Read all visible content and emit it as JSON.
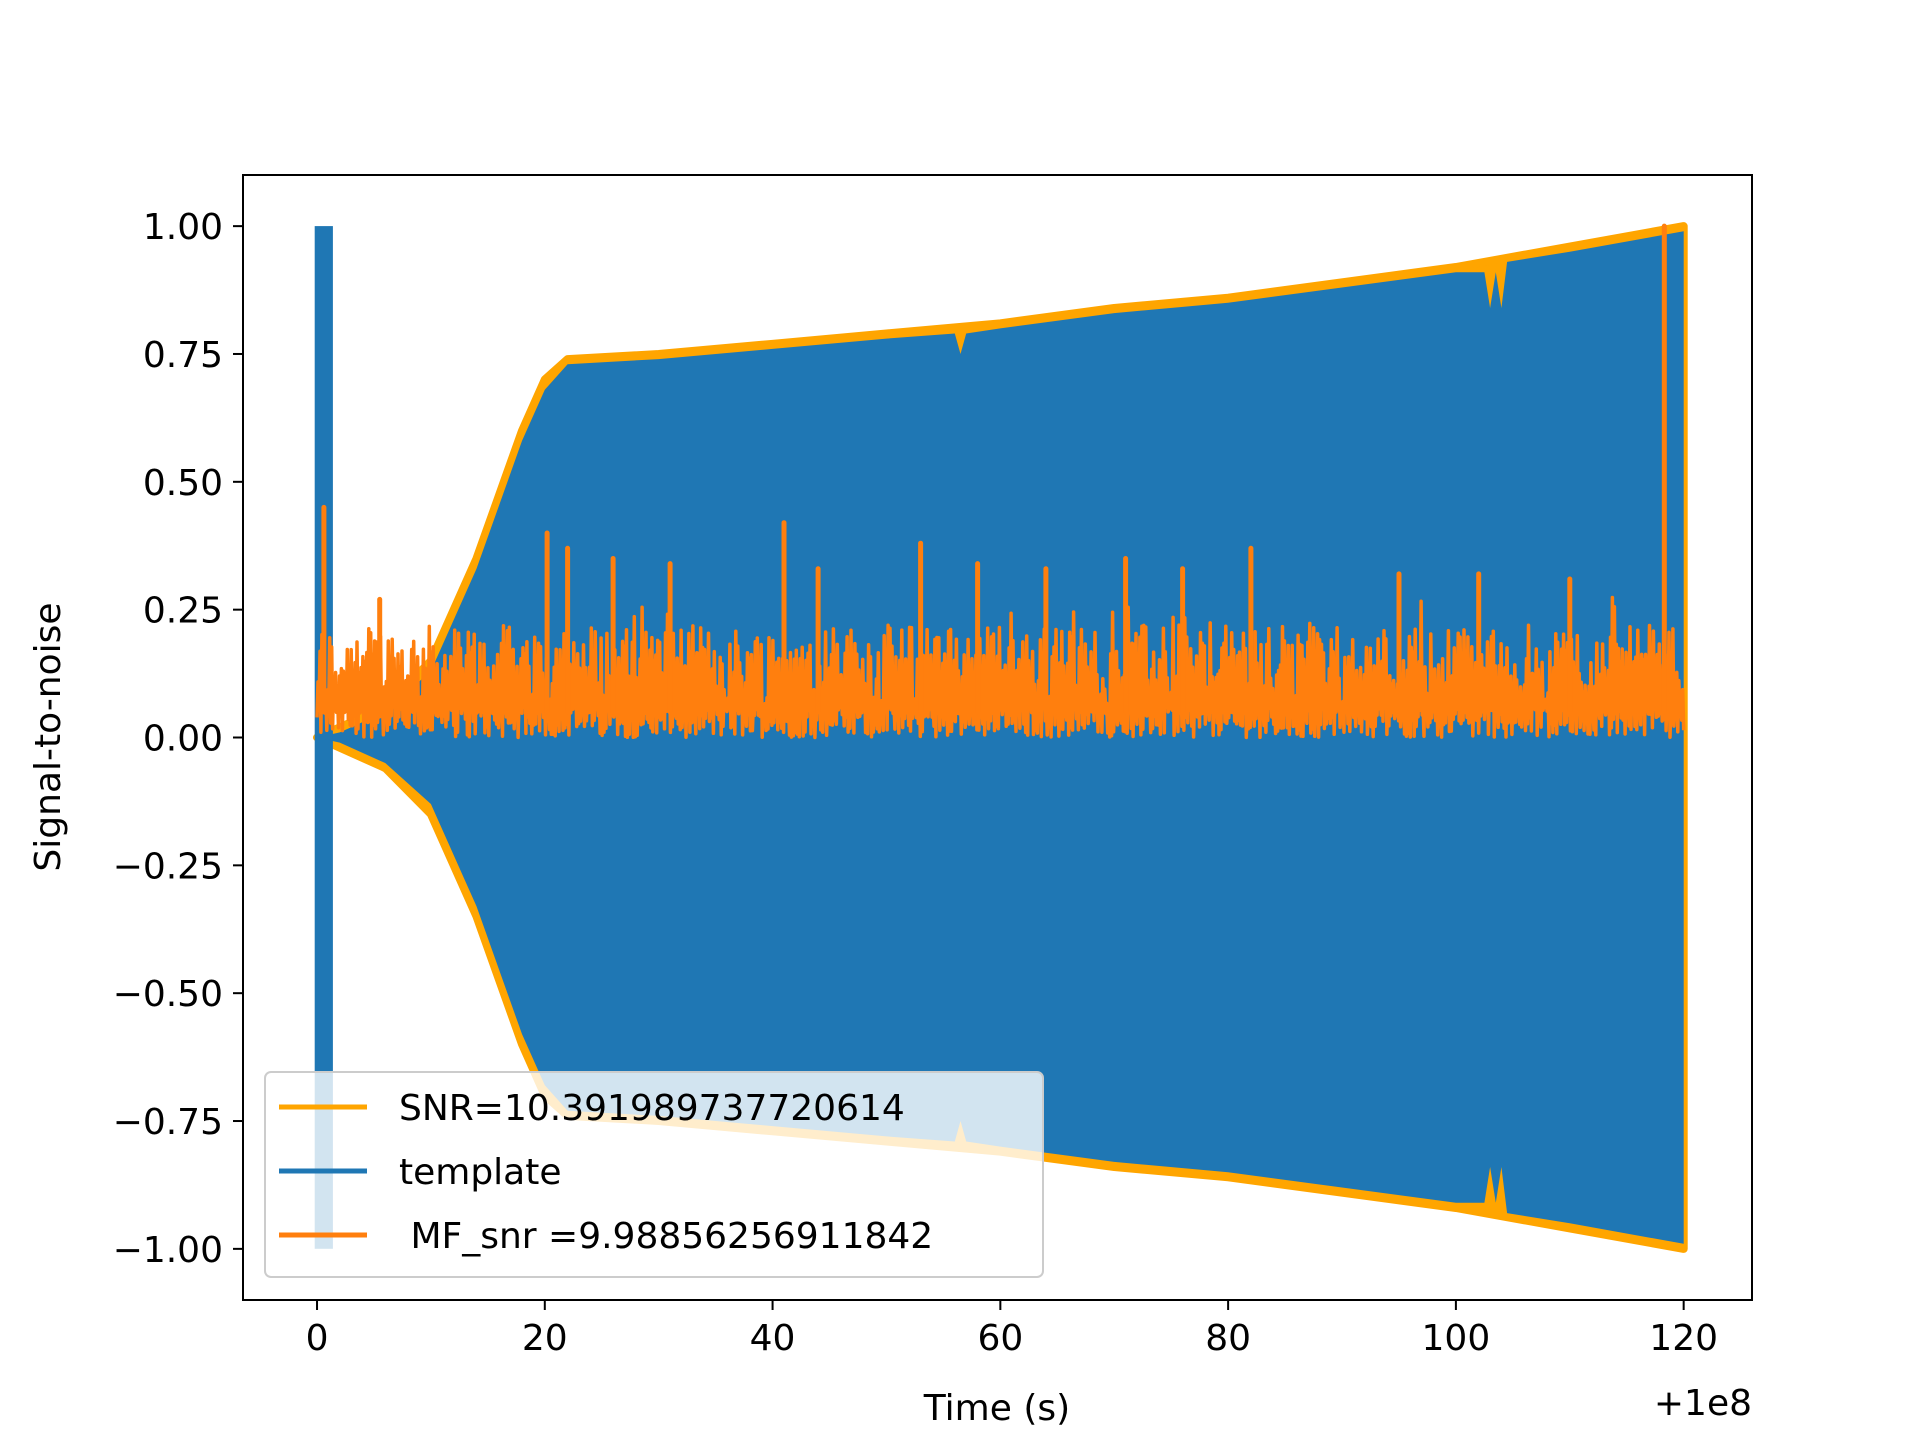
{
  "chart_data": {
    "type": "line",
    "title": "",
    "xlabel": "Time (s)",
    "ylabel": "Signal-to-noise",
    "x_offset_label": "+1e8",
    "xlim": [
      -6.5,
      126
    ],
    "ylim": [
      -1.1,
      1.1
    ],
    "xticks": [
      {
        "value": 0,
        "label": "0"
      },
      {
        "value": 20,
        "label": "20"
      },
      {
        "value": 40,
        "label": "40"
      },
      {
        "value": 60,
        "label": "60"
      },
      {
        "value": 80,
        "label": "80"
      },
      {
        "value": 100,
        "label": "100"
      },
      {
        "value": 120,
        "label": "120"
      }
    ],
    "yticks": [
      {
        "value": 1.0,
        "label": "1.00"
      },
      {
        "value": 0.75,
        "label": "0.75"
      },
      {
        "value": 0.5,
        "label": "0.50"
      },
      {
        "value": 0.25,
        "label": "0.25"
      },
      {
        "value": 0.0,
        "label": "0.00"
      },
      {
        "value": -0.25,
        "label": "−0.25"
      },
      {
        "value": -0.5,
        "label": "−0.50"
      },
      {
        "value": -0.75,
        "label": "−0.75"
      },
      {
        "value": -1.0,
        "label": "−1.00"
      }
    ],
    "grid": false,
    "legend_position": "lower-left",
    "series": [
      {
        "name": "SNR=10.391989737720614",
        "color": "#ffa500",
        "kind": "envelope",
        "upper": [
          [
            0,
            0.0
          ],
          [
            2,
            0.02
          ],
          [
            6,
            0.06
          ],
          [
            10,
            0.15
          ],
          [
            14,
            0.35
          ],
          [
            18,
            0.6
          ],
          [
            20,
            0.7
          ],
          [
            22,
            0.74
          ],
          [
            30,
            0.75
          ],
          [
            40,
            0.77
          ],
          [
            50,
            0.79
          ],
          [
            60,
            0.81
          ],
          [
            70,
            0.84
          ],
          [
            80,
            0.86
          ],
          [
            90,
            0.89
          ],
          [
            100,
            0.92
          ],
          [
            110,
            0.96
          ],
          [
            120,
            1.0
          ]
        ],
        "lower": [
          [
            0,
            0.0
          ],
          [
            2,
            -0.02
          ],
          [
            6,
            -0.06
          ],
          [
            10,
            -0.15
          ],
          [
            14,
            -0.35
          ],
          [
            18,
            -0.6
          ],
          [
            20,
            -0.7
          ],
          [
            22,
            -0.74
          ],
          [
            30,
            -0.75
          ],
          [
            40,
            -0.77
          ],
          [
            50,
            -0.79
          ],
          [
            60,
            -0.81
          ],
          [
            70,
            -0.84
          ],
          [
            80,
            -0.86
          ],
          [
            90,
            -0.89
          ],
          [
            100,
            -0.92
          ],
          [
            110,
            -0.96
          ],
          [
            120,
            -1.0
          ]
        ]
      },
      {
        "name": "template",
        "color": "#1f77b4",
        "kind": "envelope",
        "upper": [
          [
            0,
            0.0
          ],
          [
            2,
            0.01
          ],
          [
            6,
            0.05
          ],
          [
            10,
            0.13
          ],
          [
            14,
            0.33
          ],
          [
            18,
            0.58
          ],
          [
            20,
            0.68
          ],
          [
            22,
            0.73
          ],
          [
            30,
            0.74
          ],
          [
            40,
            0.76
          ],
          [
            50,
            0.78
          ],
          [
            56,
            0.79
          ],
          [
            56.5,
            0.75
          ],
          [
            57,
            0.79
          ],
          [
            60,
            0.8
          ],
          [
            70,
            0.83
          ],
          [
            80,
            0.85
          ],
          [
            90,
            0.88
          ],
          [
            100,
            0.91
          ],
          [
            102.5,
            0.91
          ],
          [
            103,
            0.84
          ],
          [
            103.5,
            0.91
          ],
          [
            104,
            0.84
          ],
          [
            104.5,
            0.93
          ],
          [
            110,
            0.95
          ],
          [
            120,
            0.99
          ]
        ],
        "lower": [
          [
            0,
            0.0
          ],
          [
            2,
            -0.01
          ],
          [
            6,
            -0.05
          ],
          [
            10,
            -0.13
          ],
          [
            14,
            -0.33
          ],
          [
            18,
            -0.58
          ],
          [
            20,
            -0.68
          ],
          [
            22,
            -0.73
          ],
          [
            30,
            -0.74
          ],
          [
            40,
            -0.76
          ],
          [
            50,
            -0.78
          ],
          [
            56,
            -0.79
          ],
          [
            56.5,
            -0.75
          ],
          [
            57,
            -0.79
          ],
          [
            60,
            -0.8
          ],
          [
            70,
            -0.83
          ],
          [
            80,
            -0.85
          ],
          [
            90,
            -0.88
          ],
          [
            100,
            -0.91
          ],
          [
            102.5,
            -0.91
          ],
          [
            103,
            -0.84
          ],
          [
            103.5,
            -0.91
          ],
          [
            104,
            -0.84
          ],
          [
            104.5,
            -0.93
          ],
          [
            110,
            -0.95
          ],
          [
            120,
            -0.99
          ]
        ],
        "spike": {
          "x_start": -0.2,
          "x_end": 1.4,
          "max": 1.0,
          "min": -1.0
        }
      },
      {
        "name": " MF_snr =9.98856256911842",
        "color": "#ff7f0e",
        "kind": "noise",
        "x_start": 0,
        "x_end": 120,
        "baseline_min": 0.0,
        "typical_max": 0.22,
        "peaks": [
          [
            0.6,
            0.45
          ],
          [
            5.5,
            0.27
          ],
          [
            20.2,
            0.4
          ],
          [
            22,
            0.37
          ],
          [
            26,
            0.35
          ],
          [
            31,
            0.34
          ],
          [
            41,
            0.42
          ],
          [
            44,
            0.33
          ],
          [
            53,
            0.38
          ],
          [
            58,
            0.34
          ],
          [
            64,
            0.33
          ],
          [
            71,
            0.35
          ],
          [
            76,
            0.33
          ],
          [
            82,
            0.37
          ],
          [
            95,
            0.32
          ],
          [
            102,
            0.32
          ],
          [
            110,
            0.31
          ],
          [
            118.3,
            1.0
          ]
        ]
      }
    ]
  }
}
